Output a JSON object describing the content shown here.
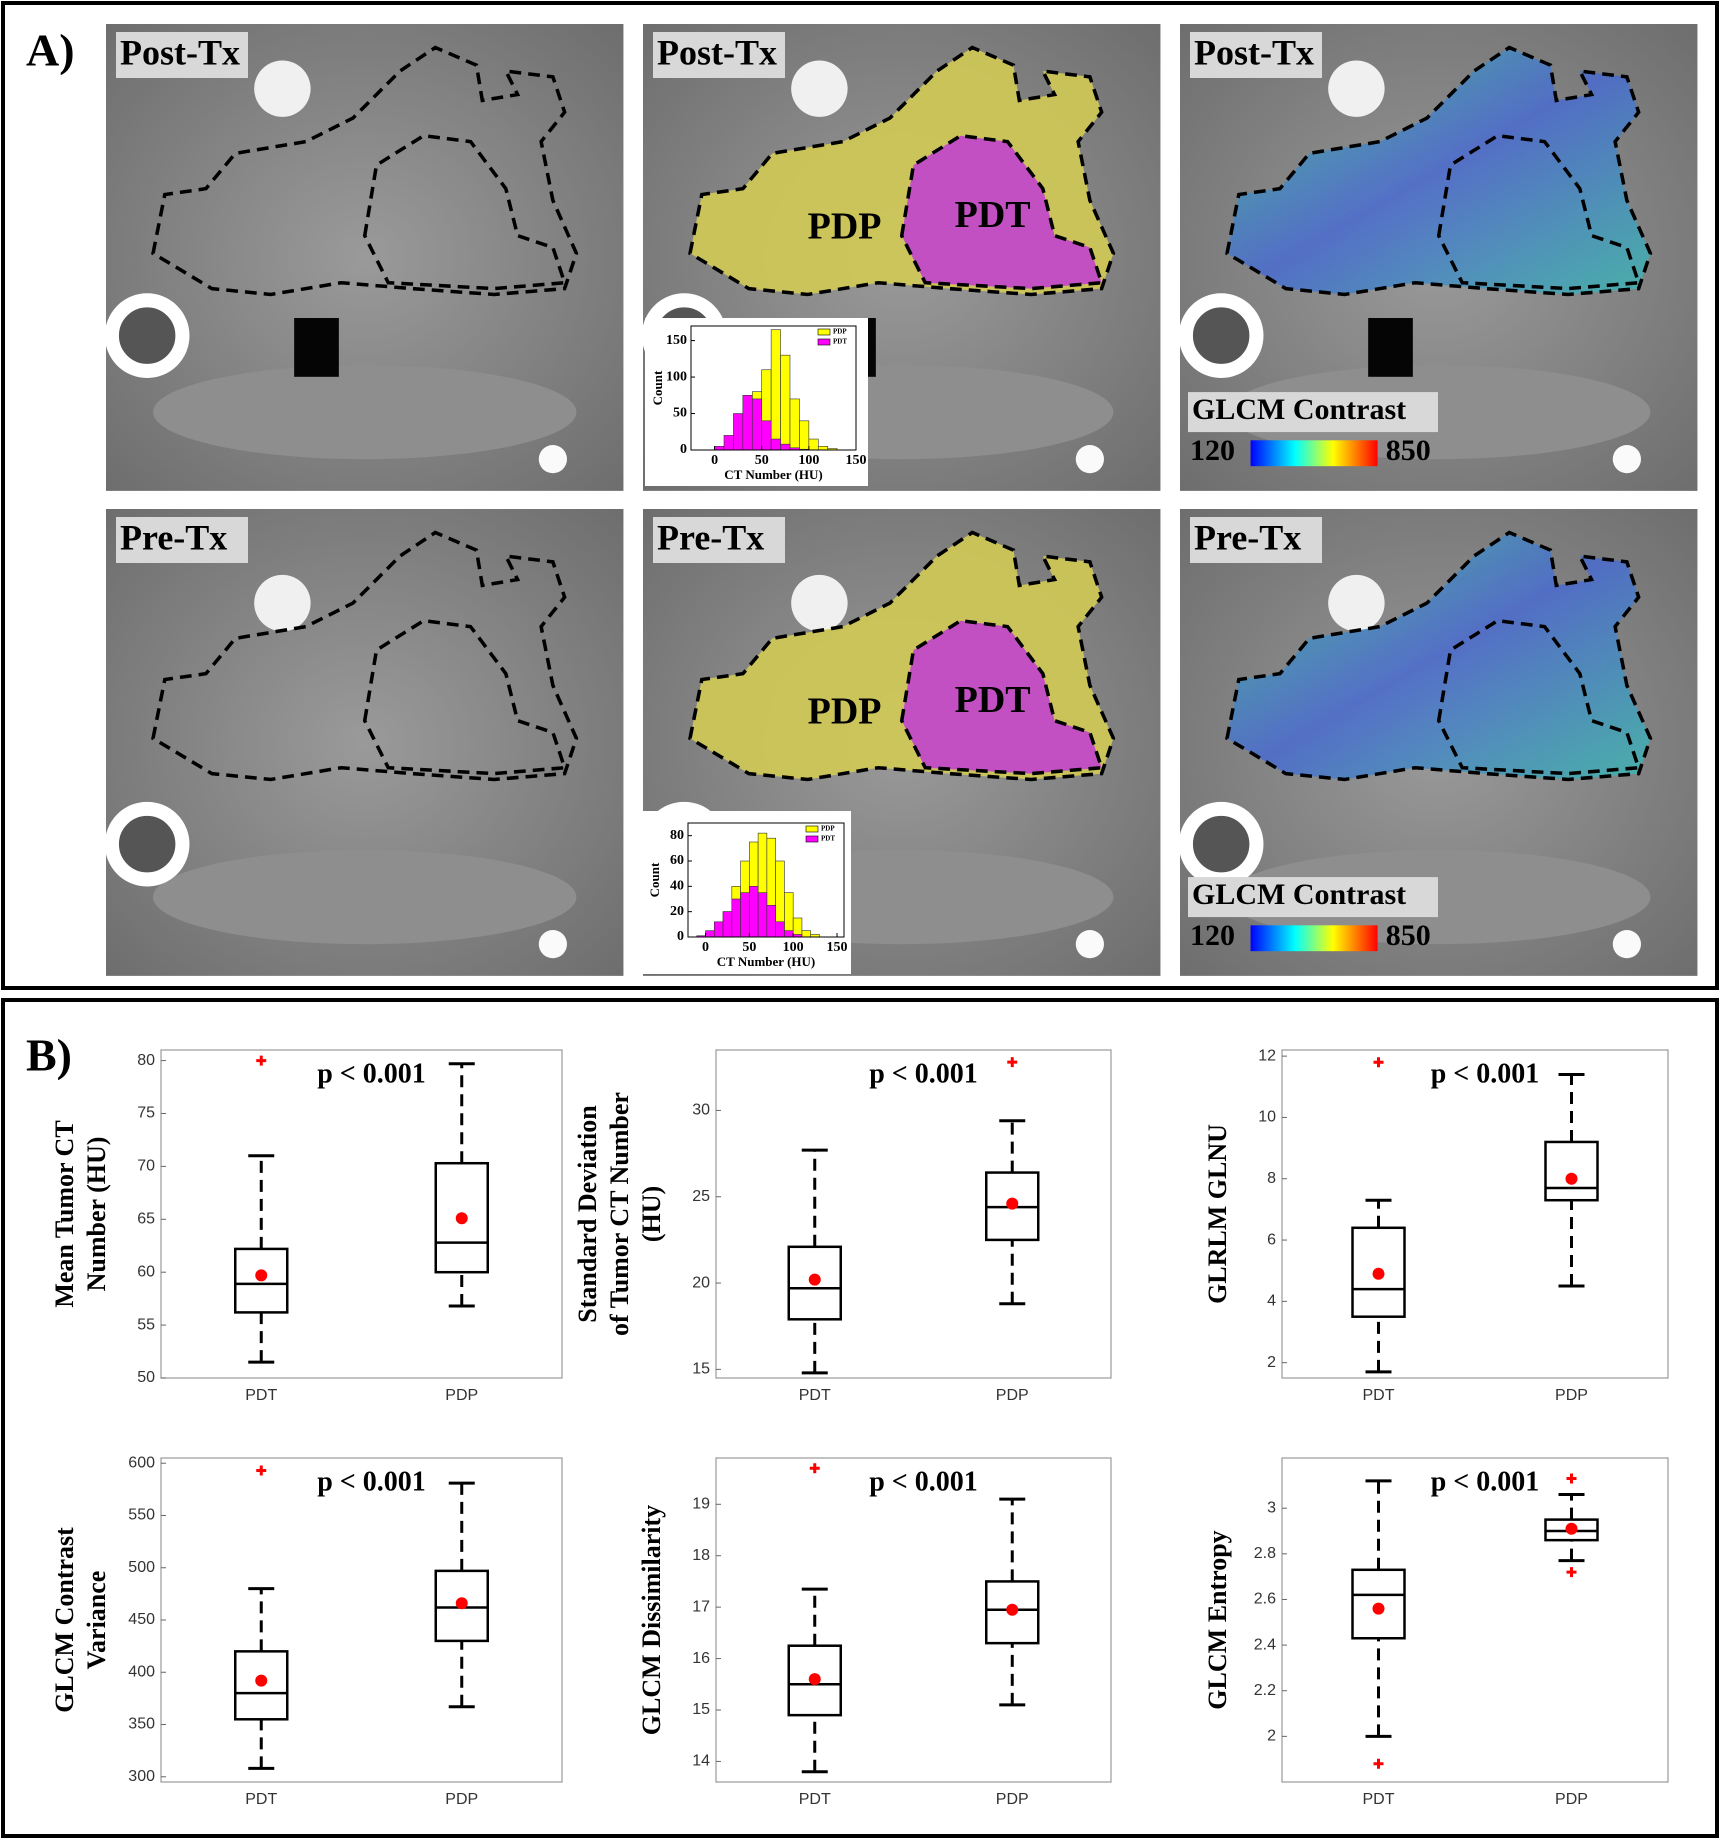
{
  "panel_a": {
    "label": "A)",
    "rows": [
      {
        "timepoint": "Post-Tx"
      },
      {
        "timepoint": "Pre-Tx"
      }
    ],
    "regions": [
      "PDP",
      "PDT"
    ],
    "colorbar": {
      "title": "GLCM Contrast",
      "min": 120,
      "max": 850
    }
  },
  "panel_b": {
    "label": "B)"
  },
  "chart_data": [
    {
      "type": "histogram",
      "xlabel": "CT Number (HU)",
      "ylabel": "Count",
      "bins": [
        -10,
        0,
        10,
        20,
        30,
        40,
        50,
        60,
        70,
        80,
        90,
        100,
        110,
        120,
        130
      ],
      "series": [
        {
          "name": "PDP",
          "color": "#ffff00",
          "values": [
            0,
            2,
            5,
            15,
            40,
            80,
            110,
            165,
            130,
            70,
            40,
            15,
            5,
            2
          ]
        },
        {
          "name": "PDT",
          "color": "#ff00ff",
          "values": [
            0,
            5,
            20,
            50,
            75,
            70,
            40,
            15,
            8,
            3,
            1,
            0,
            0,
            0
          ]
        }
      ],
      "xlim": [
        -25,
        150
      ],
      "ylim": [
        0,
        170
      ],
      "xticks": [
        0,
        50,
        100,
        150
      ],
      "yticks": [
        0,
        50,
        100,
        150
      ]
    },
    {
      "type": "histogram",
      "xlabel": "CT Number (HU)",
      "ylabel": "Count",
      "bins": [
        -10,
        0,
        10,
        20,
        30,
        40,
        50,
        60,
        70,
        80,
        90,
        100,
        110,
        120,
        130
      ],
      "series": [
        {
          "name": "PDP",
          "color": "#ffff00",
          "values": [
            0,
            2,
            8,
            20,
            40,
            60,
            75,
            82,
            78,
            60,
            35,
            15,
            5,
            2
          ]
        },
        {
          "name": "PDT",
          "color": "#ff00ff",
          "values": [
            1,
            5,
            12,
            20,
            30,
            35,
            40,
            35,
            25,
            12,
            5,
            2,
            0,
            0
          ]
        }
      ],
      "xlim": [
        -20,
        158
      ],
      "ylim": [
        0,
        90
      ],
      "xticks": [
        0,
        50,
        100,
        150
      ],
      "yticks": [
        0,
        20,
        40,
        60,
        80
      ]
    },
    {
      "type": "box",
      "ylabel": [
        "Mean Tumor CT",
        "Number (HU)"
      ],
      "annotation": "p < 0.001",
      "categories": [
        "PDT",
        "PDP"
      ],
      "boxes": [
        {
          "whislo": 51.5,
          "q1": 56.2,
          "med": 58.9,
          "q3": 62.2,
          "whishi": 71,
          "mean": 59.7,
          "fliers": [
            80
          ]
        },
        {
          "whislo": 56.8,
          "q1": 60,
          "med": 62.8,
          "q3": 70.3,
          "whishi": 79.7,
          "mean": 65.1,
          "fliers": []
        }
      ],
      "ylim": [
        50,
        81
      ],
      "yticks": [
        50,
        55,
        60,
        65,
        70,
        75,
        80
      ],
      "mean_color": "#ff0000",
      "flier_color": "#ff0000"
    },
    {
      "type": "box",
      "ylabel": [
        "Standard Deviation",
        "of Tumor CT Number",
        "(HU)"
      ],
      "annotation": "p < 0.001",
      "categories": [
        "PDT",
        "PDP"
      ],
      "boxes": [
        {
          "whislo": 14.8,
          "q1": 17.9,
          "med": 19.7,
          "q3": 22.1,
          "whishi": 27.7,
          "mean": 20.2,
          "fliers": []
        },
        {
          "whislo": 18.8,
          "q1": 22.5,
          "med": 24.4,
          "q3": 26.4,
          "whishi": 29.4,
          "mean": 24.6,
          "fliers": [
            32.8
          ]
        }
      ],
      "ylim": [
        14.5,
        33.5
      ],
      "yticks": [
        15,
        20,
        25,
        30
      ],
      "mean_color": "#ff0000",
      "flier_color": "#ff0000"
    },
    {
      "type": "box",
      "ylabel": [
        "GLRLM GLNU"
      ],
      "annotation": "p < 0.001",
      "categories": [
        "PDT",
        "PDP"
      ],
      "boxes": [
        {
          "whislo": 1.7,
          "q1": 3.5,
          "med": 4.4,
          "q3": 6.4,
          "whishi": 7.3,
          "mean": 4.9,
          "fliers": [
            11.8
          ]
        },
        {
          "whislo": 4.5,
          "q1": 7.3,
          "med": 7.7,
          "q3": 9.2,
          "whishi": 11.4,
          "mean": 8.0,
          "fliers": []
        }
      ],
      "ylim": [
        1.5,
        12.2
      ],
      "yticks": [
        2,
        4,
        6,
        8,
        10,
        12
      ],
      "mean_color": "#ff0000",
      "flier_color": "#ff0000"
    },
    {
      "type": "box",
      "ylabel": [
        "GLCM Contrast",
        "Variance"
      ],
      "annotation": "p < 0.001",
      "categories": [
        "PDT",
        "PDP"
      ],
      "boxes": [
        {
          "whislo": 308,
          "q1": 355,
          "med": 380,
          "q3": 420,
          "whishi": 480,
          "mean": 392,
          "fliers": [
            593
          ]
        },
        {
          "whislo": 367,
          "q1": 430,
          "med": 462,
          "q3": 497,
          "whishi": 581,
          "mean": 466,
          "fliers": []
        }
      ],
      "ylim": [
        295,
        605
      ],
      "yticks": [
        300,
        350,
        400,
        450,
        500,
        550,
        600
      ],
      "mean_color": "#ff0000",
      "flier_color": "#ff0000"
    },
    {
      "type": "box",
      "ylabel": [
        "GLCM Dissimilarity"
      ],
      "annotation": "p < 0.001",
      "categories": [
        "PDT",
        "PDP"
      ],
      "boxes": [
        {
          "whislo": 13.8,
          "q1": 14.9,
          "med": 15.5,
          "q3": 16.25,
          "whishi": 17.35,
          "mean": 15.6,
          "fliers": [
            19.7
          ]
        },
        {
          "whislo": 15.1,
          "q1": 16.3,
          "med": 16.95,
          "q3": 17.5,
          "whishi": 19.1,
          "mean": 16.95,
          "fliers": []
        }
      ],
      "ylim": [
        13.6,
        19.9
      ],
      "yticks": [
        14,
        15,
        16,
        17,
        18,
        19
      ],
      "mean_color": "#ff0000",
      "flier_color": "#ff0000"
    },
    {
      "type": "box",
      "ylabel": [
        "GLCM Entropy"
      ],
      "annotation": "p < 0.001",
      "categories": [
        "PDT",
        "PDP"
      ],
      "boxes": [
        {
          "whislo": 2.0,
          "q1": 2.43,
          "med": 2.62,
          "q3": 2.73,
          "whishi": 3.12,
          "mean": 2.56,
          "fliers": [
            1.88
          ]
        },
        {
          "whislo": 2.77,
          "q1": 2.86,
          "med": 2.9,
          "q3": 2.95,
          "whishi": 3.06,
          "mean": 2.91,
          "fliers": [
            3.13,
            2.72
          ]
        }
      ],
      "ylim": [
        1.8,
        3.22
      ],
      "yticks": [
        2,
        2.2,
        2.4,
        2.6,
        2.8,
        3
      ],
      "mean_color": "#ff0000",
      "flier_color": "#ff0000"
    }
  ]
}
